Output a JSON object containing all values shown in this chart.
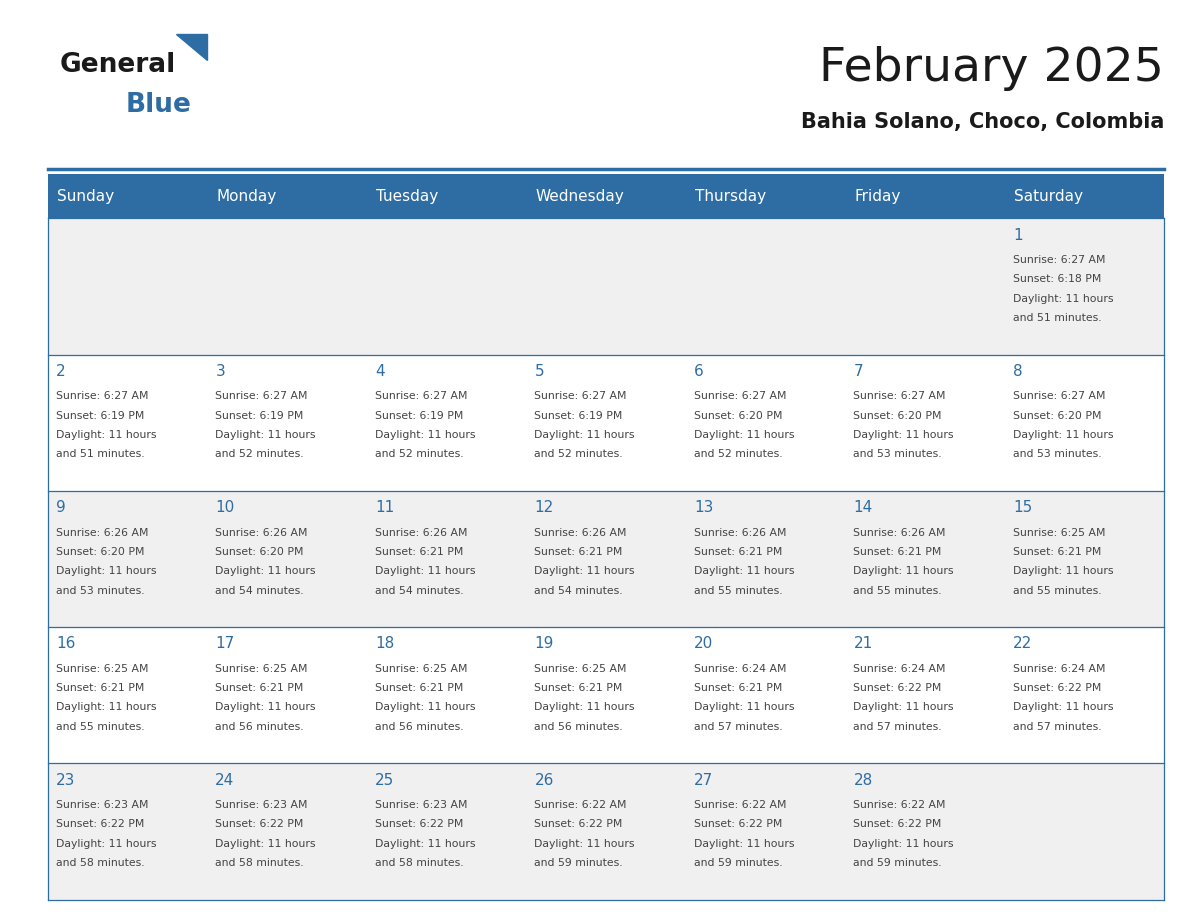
{
  "title": "February 2025",
  "subtitle": "Bahia Solano, Choco, Colombia",
  "days_of_week": [
    "Sunday",
    "Monday",
    "Tuesday",
    "Wednesday",
    "Thursday",
    "Friday",
    "Saturday"
  ],
  "header_bg": "#2E6DA4",
  "header_text": "#FFFFFF",
  "cell_bg_light": "#F0F0F0",
  "cell_bg_white": "#FFFFFF",
  "cell_text": "#444444",
  "day_num_color": "#2E6DA4",
  "border_color": "#2E6DA4",
  "title_color": "#1A1A1A",
  "subtitle_color": "#1A1A1A",
  "logo_general_color": "#1A1A1A",
  "logo_blue_color": "#2E6DA4",
  "calendar": [
    [
      null,
      null,
      null,
      null,
      null,
      null,
      {
        "day": 1,
        "sunrise": "6:27 AM",
        "sunset": "6:18 PM",
        "daylight": "11 hours and 51 minutes."
      }
    ],
    [
      {
        "day": 2,
        "sunrise": "6:27 AM",
        "sunset": "6:19 PM",
        "daylight": "11 hours and 51 minutes."
      },
      {
        "day": 3,
        "sunrise": "6:27 AM",
        "sunset": "6:19 PM",
        "daylight": "11 hours and 52 minutes."
      },
      {
        "day": 4,
        "sunrise": "6:27 AM",
        "sunset": "6:19 PM",
        "daylight": "11 hours and 52 minutes."
      },
      {
        "day": 5,
        "sunrise": "6:27 AM",
        "sunset": "6:19 PM",
        "daylight": "11 hours and 52 minutes."
      },
      {
        "day": 6,
        "sunrise": "6:27 AM",
        "sunset": "6:20 PM",
        "daylight": "11 hours and 52 minutes."
      },
      {
        "day": 7,
        "sunrise": "6:27 AM",
        "sunset": "6:20 PM",
        "daylight": "11 hours and 53 minutes."
      },
      {
        "day": 8,
        "sunrise": "6:27 AM",
        "sunset": "6:20 PM",
        "daylight": "11 hours and 53 minutes."
      }
    ],
    [
      {
        "day": 9,
        "sunrise": "6:26 AM",
        "sunset": "6:20 PM",
        "daylight": "11 hours and 53 minutes."
      },
      {
        "day": 10,
        "sunrise": "6:26 AM",
        "sunset": "6:20 PM",
        "daylight": "11 hours and 54 minutes."
      },
      {
        "day": 11,
        "sunrise": "6:26 AM",
        "sunset": "6:21 PM",
        "daylight": "11 hours and 54 minutes."
      },
      {
        "day": 12,
        "sunrise": "6:26 AM",
        "sunset": "6:21 PM",
        "daylight": "11 hours and 54 minutes."
      },
      {
        "day": 13,
        "sunrise": "6:26 AM",
        "sunset": "6:21 PM",
        "daylight": "11 hours and 55 minutes."
      },
      {
        "day": 14,
        "sunrise": "6:26 AM",
        "sunset": "6:21 PM",
        "daylight": "11 hours and 55 minutes."
      },
      {
        "day": 15,
        "sunrise": "6:25 AM",
        "sunset": "6:21 PM",
        "daylight": "11 hours and 55 minutes."
      }
    ],
    [
      {
        "day": 16,
        "sunrise": "6:25 AM",
        "sunset": "6:21 PM",
        "daylight": "11 hours and 55 minutes."
      },
      {
        "day": 17,
        "sunrise": "6:25 AM",
        "sunset": "6:21 PM",
        "daylight": "11 hours and 56 minutes."
      },
      {
        "day": 18,
        "sunrise": "6:25 AM",
        "sunset": "6:21 PM",
        "daylight": "11 hours and 56 minutes."
      },
      {
        "day": 19,
        "sunrise": "6:25 AM",
        "sunset": "6:21 PM",
        "daylight": "11 hours and 56 minutes."
      },
      {
        "day": 20,
        "sunrise": "6:24 AM",
        "sunset": "6:21 PM",
        "daylight": "11 hours and 57 minutes."
      },
      {
        "day": 21,
        "sunrise": "6:24 AM",
        "sunset": "6:22 PM",
        "daylight": "11 hours and 57 minutes."
      },
      {
        "day": 22,
        "sunrise": "6:24 AM",
        "sunset": "6:22 PM",
        "daylight": "11 hours and 57 minutes."
      }
    ],
    [
      {
        "day": 23,
        "sunrise": "6:23 AM",
        "sunset": "6:22 PM",
        "daylight": "11 hours and 58 minutes."
      },
      {
        "day": 24,
        "sunrise": "6:23 AM",
        "sunset": "6:22 PM",
        "daylight": "11 hours and 58 minutes."
      },
      {
        "day": 25,
        "sunrise": "6:23 AM",
        "sunset": "6:22 PM",
        "daylight": "11 hours and 58 minutes."
      },
      {
        "day": 26,
        "sunrise": "6:22 AM",
        "sunset": "6:22 PM",
        "daylight": "11 hours and 59 minutes."
      },
      {
        "day": 27,
        "sunrise": "6:22 AM",
        "sunset": "6:22 PM",
        "daylight": "11 hours and 59 minutes."
      },
      {
        "day": 28,
        "sunrise": "6:22 AM",
        "sunset": "6:22 PM",
        "daylight": "11 hours and 59 minutes."
      },
      null
    ]
  ]
}
